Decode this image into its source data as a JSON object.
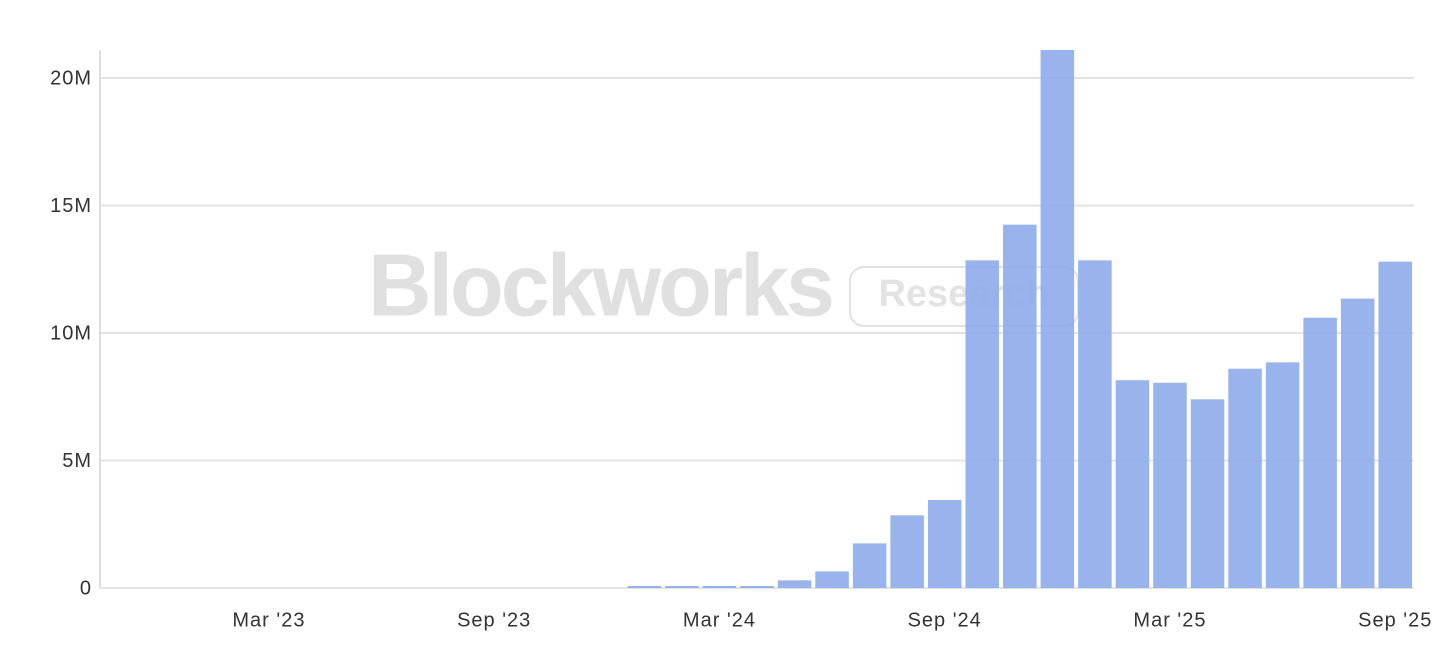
{
  "chart_data": {
    "type": "bar",
    "watermark": {
      "brand": "Blockworks",
      "tag": "Research"
    },
    "categories": [
      null,
      null,
      null,
      null,
      "Mar '23",
      null,
      null,
      null,
      null,
      null,
      "Sep '23",
      null,
      null,
      null,
      null,
      null,
      "Mar '24",
      null,
      null,
      null,
      null,
      null,
      "Sep '24",
      null,
      null,
      null,
      null,
      null,
      "Mar '25",
      null,
      null,
      null,
      null,
      null,
      "Sep '25"
    ],
    "values": [
      null,
      null,
      null,
      null,
      null,
      null,
      null,
      null,
      null,
      null,
      null,
      null,
      null,
      null,
      80000,
      80000,
      80000,
      80000,
      300000,
      650000,
      1750000,
      2850000,
      3450000,
      12850000,
      14250000,
      21100000,
      12850000,
      8150000,
      8050000,
      7400000,
      8600000,
      8850000,
      10600000,
      11350000,
      12800000
    ],
    "color": "#8eabea",
    "ylim": [
      0,
      21100000
    ],
    "yticks": [
      0,
      {
        "value": 5000000,
        "label": "5M"
      },
      {
        "value": 10000000,
        "label": "10M"
      },
      {
        "value": 15000000,
        "label": "15M"
      },
      {
        "value": 20000000,
        "label": "20M"
      }
    ],
    "grid": true
  }
}
